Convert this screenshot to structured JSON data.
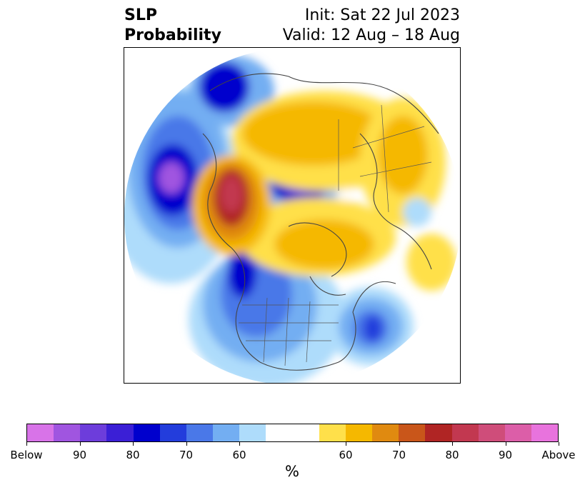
{
  "title": {
    "left": [
      "SLP",
      "Probability"
    ],
    "right": [
      "Init: Sat 22 Jul 2023",
      "Valid: 12 Aug – 18 Aug"
    ]
  },
  "colorbar": {
    "colors": [
      "#d873e8",
      "#a055e0",
      "#6d3ddb",
      "#3b1fd6",
      "#0000cd",
      "#233ddc",
      "#4a78e8",
      "#73aef2",
      "#aedcfb",
      "#ffffff",
      "#ffffff",
      "#ffe04a",
      "#f5b800",
      "#e08a10",
      "#c9561a",
      "#b02524",
      "#c23850",
      "#cf4d7a",
      "#dc5ea8",
      "#e873dd"
    ],
    "ticks": [
      "Below",
      "90",
      "80",
      "70",
      "60",
      "60",
      "70",
      "80",
      "90",
      "Above"
    ],
    "unit": "%"
  },
  "map": {
    "projection": "north-polar-stereographic",
    "features": [
      "coastlines",
      "country-borders",
      "us-state-borders"
    ]
  }
}
